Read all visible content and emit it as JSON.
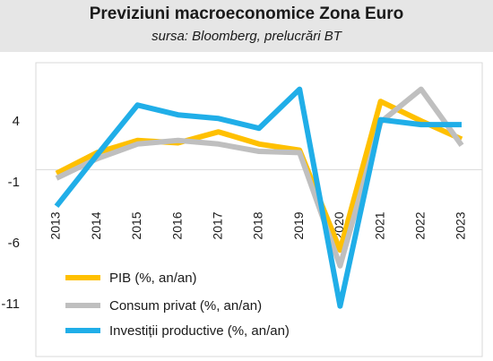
{
  "header": {
    "title": "Previziuni macroeconomice Zona Euro",
    "subtitle": "sursa: Bloomberg, prelucrări BT"
  },
  "chart_data": {
    "type": "line",
    "title": "Previziuni macroeconomice Zona Euro",
    "subtitle": "sursa: Bloomberg, prelucrări BT",
    "xlabel": "",
    "ylabel": "",
    "x": [
      "2013",
      "2014",
      "2015",
      "2016",
      "2017",
      "2018",
      "2019",
      "2020",
      "2021",
      "2022",
      "2023"
    ],
    "ylim": [
      -11,
      9
    ],
    "yticks": [
      4,
      -1,
      -6,
      -11
    ],
    "ytick_labels": [
      "4",
      "-1",
      "-6",
      "-11"
    ],
    "grid": false,
    "legend_position": "bottom-left",
    "series": [
      {
        "name": "PIB (%, an/an)",
        "color": "#ffc000",
        "values": [
          -0.3,
          1.4,
          2.4,
          2.2,
          3.1,
          2.1,
          1.6,
          -6.6,
          5.6,
          4.0,
          2.5
        ]
      },
      {
        "name": "Consum privat (%, an/an)",
        "color": "#bfbfbf",
        "values": [
          -0.7,
          0.9,
          2.1,
          2.4,
          2.1,
          1.5,
          1.4,
          -7.9,
          3.9,
          6.6,
          2.0
        ]
      },
      {
        "name": "Investiții productive (%, an/an)",
        "color": "#20aee8",
        "values": [
          -3.0,
          1.2,
          5.3,
          4.5,
          4.2,
          3.4,
          6.6,
          -11.2,
          4.1,
          3.7,
          3.7
        ]
      }
    ]
  }
}
